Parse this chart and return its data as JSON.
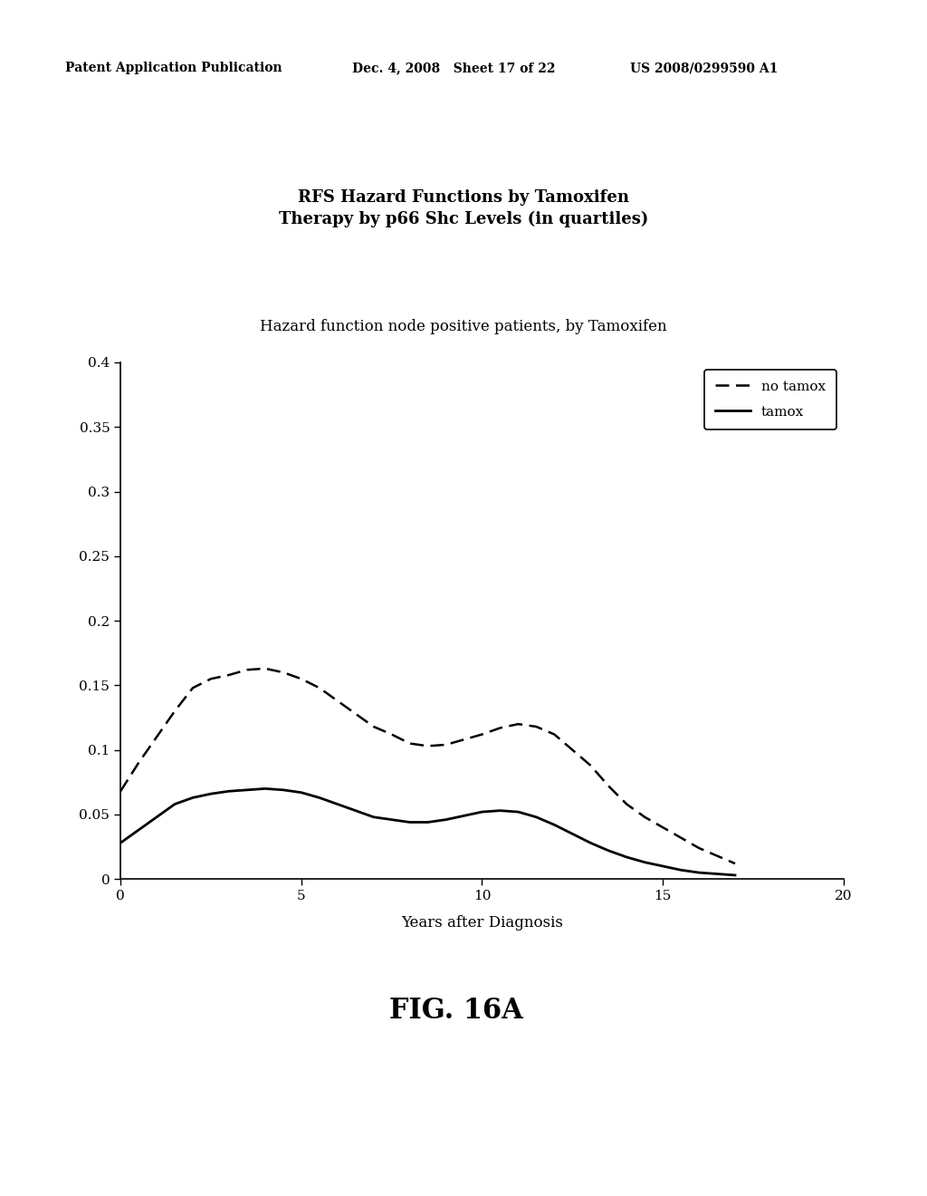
{
  "title_main": "RFS Hazard Functions by Tamoxifen\nTherapy by p66 Shc Levels (in quartiles)",
  "subtitle": "Hazard function node positive patients, by Tamoxifen",
  "xlabel": "Years after Diagnosis",
  "ylabel": "",
  "fig_label": "FIG. 16A",
  "header_left": "Patent Application Publication",
  "header_mid": "Dec. 4, 2008   Sheet 17 of 22",
  "header_right": "US 2008/0299590 A1",
  "xlim": [
    0,
    20
  ],
  "ylim": [
    0,
    0.4
  ],
  "xticks": [
    0,
    5,
    10,
    15,
    20
  ],
  "yticks": [
    0,
    0.05,
    0.1,
    0.15,
    0.2,
    0.25,
    0.3,
    0.35,
    0.4
  ],
  "ytick_labels": [
    "0",
    "0.05",
    "0.1",
    "0.15",
    "0.2",
    "0.25",
    "0.3",
    "0.35",
    "0.4"
  ],
  "xtick_labels": [
    "0",
    "5",
    "10",
    "15",
    "20"
  ],
  "no_tamox_x": [
    0,
    0.5,
    1,
    1.5,
    2,
    2.5,
    3,
    3.5,
    4,
    4.5,
    5,
    5.5,
    6,
    6.5,
    7,
    7.5,
    8,
    8.5,
    9,
    9.5,
    10,
    10.5,
    11,
    11.5,
    12,
    12.5,
    13,
    13.5,
    14,
    14.5,
    15,
    15.5,
    16,
    16.5,
    17
  ],
  "no_tamox_y": [
    0.068,
    0.09,
    0.11,
    0.13,
    0.148,
    0.155,
    0.158,
    0.162,
    0.163,
    0.16,
    0.155,
    0.148,
    0.138,
    0.128,
    0.118,
    0.112,
    0.105,
    0.103,
    0.104,
    0.108,
    0.112,
    0.117,
    0.12,
    0.118,
    0.112,
    0.1,
    0.088,
    0.072,
    0.058,
    0.048,
    0.04,
    0.032,
    0.024,
    0.018,
    0.012
  ],
  "tamox_x": [
    0,
    0.5,
    1,
    1.5,
    2,
    2.5,
    3,
    3.5,
    4,
    4.5,
    5,
    5.5,
    6,
    6.5,
    7,
    7.5,
    8,
    8.5,
    9,
    9.5,
    10,
    10.5,
    11,
    11.5,
    12,
    12.5,
    13,
    13.5,
    14,
    14.5,
    15,
    15.5,
    16,
    16.5,
    17
  ],
  "tamox_y": [
    0.028,
    0.038,
    0.048,
    0.058,
    0.063,
    0.066,
    0.068,
    0.069,
    0.07,
    0.069,
    0.067,
    0.063,
    0.058,
    0.053,
    0.048,
    0.046,
    0.044,
    0.044,
    0.046,
    0.049,
    0.052,
    0.053,
    0.052,
    0.048,
    0.042,
    0.035,
    0.028,
    0.022,
    0.017,
    0.013,
    0.01,
    0.007,
    0.005,
    0.004,
    0.003
  ],
  "legend_no_tamox": "no tamox",
  "legend_tamox": "tamox",
  "bg_color": "#ffffff",
  "line_color": "#000000",
  "header_fontsize": 10,
  "title_fontsize": 13,
  "subtitle_fontsize": 12,
  "tick_fontsize": 11,
  "xlabel_fontsize": 12,
  "fig_label_fontsize": 22
}
